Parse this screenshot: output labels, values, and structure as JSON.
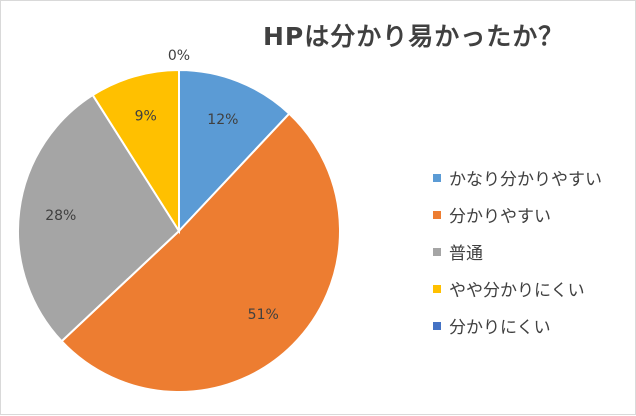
{
  "chart_data": {
    "type": "pie",
    "title": "HPは分かり易かったか？",
    "categories": [
      "かなり分かりやすい",
      "分かりやすい",
      "普通",
      "やや分かりにくい",
      "分かりにくい"
    ],
    "values": [
      12,
      51,
      28,
      9,
      0
    ],
    "value_labels": [
      "12%",
      "51%",
      "28%",
      "9%",
      "0%"
    ],
    "colors": [
      "#5b9bd5",
      "#ed7d31",
      "#a5a5a5",
      "#ffc000",
      "#4472c4"
    ],
    "start_angle_deg": 0,
    "direction": "clockwise",
    "legend_position": "right"
  }
}
